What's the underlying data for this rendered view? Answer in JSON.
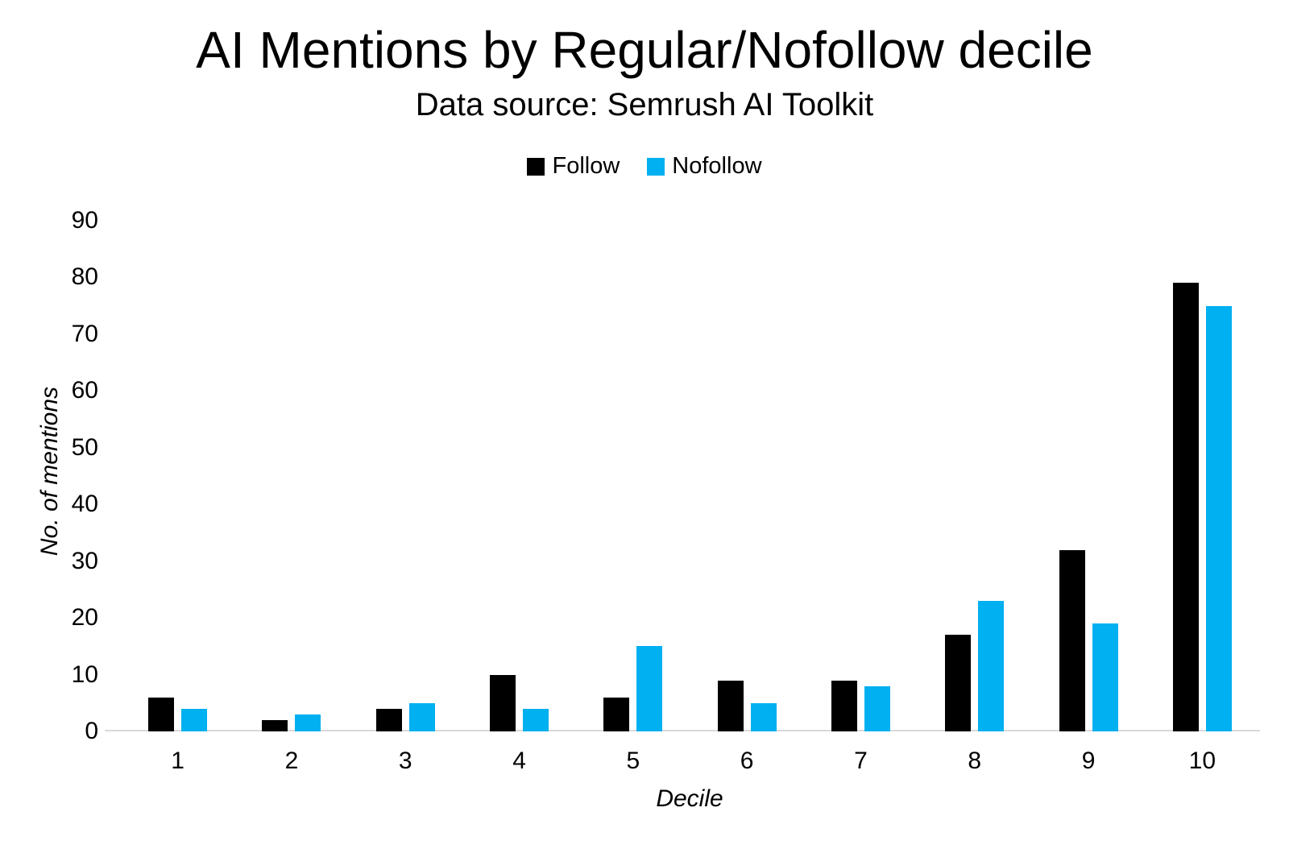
{
  "chart_data": {
    "type": "bar",
    "title": "AI Mentions by Regular/Nofollow decile",
    "subtitle": "Data source: Semrush AI Toolkit",
    "xlabel": "Decile",
    "ylabel": "No. of mentions",
    "categories": [
      "1",
      "2",
      "3",
      "4",
      "5",
      "6",
      "7",
      "8",
      "9",
      "10"
    ],
    "series": [
      {
        "name": "Follow",
        "color": "#000000",
        "values": [
          6,
          2,
          4,
          10,
          6,
          9,
          9,
          17,
          32,
          79
        ]
      },
      {
        "name": "Nofollow",
        "color": "#00B0F0",
        "values": [
          4,
          3,
          5,
          4,
          15,
          5,
          8,
          23,
          19,
          75
        ]
      }
    ],
    "ylim": [
      0,
      90
    ],
    "ytick_step": 10,
    "grid": false,
    "legend_position": "top",
    "axis_line_color": "#D9D9D9"
  }
}
